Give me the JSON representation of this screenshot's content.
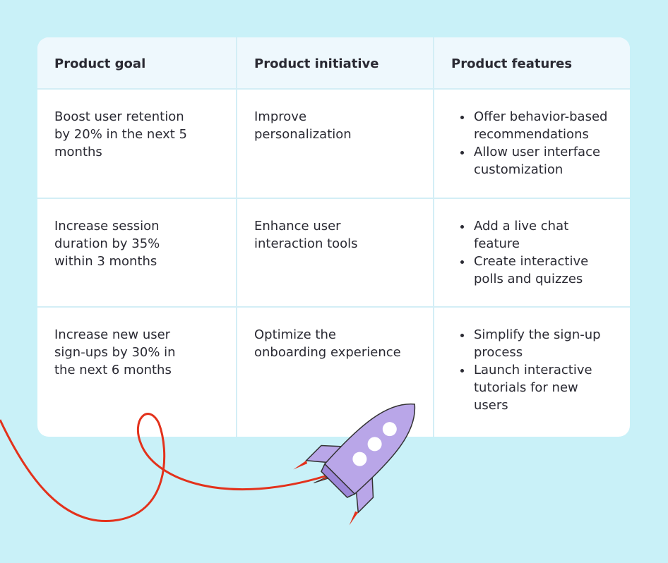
{
  "table": {
    "columns": [
      "Product goal",
      "Product initiative",
      "Product features"
    ],
    "rows": [
      [
        "Boost user retention by 20% in the next 5 months",
        "Improve personalization",
        [
          "Offer behavior-based recommendations",
          "Allow user interface customization"
        ]
      ],
      [
        "Increase session duration by 35% within 3 months",
        "Enhance user interaction tools",
        [
          "Add a live chat feature",
          "Create interactive polls and quizzes"
        ]
      ],
      [
        "Increase new user sign-ups by 30% in the next 6 months",
        "Optimize the onboarding experience",
        [
          "Simplify the sign-up process",
          "Launch interactive tutorials for new users"
        ]
      ]
    ]
  }
}
